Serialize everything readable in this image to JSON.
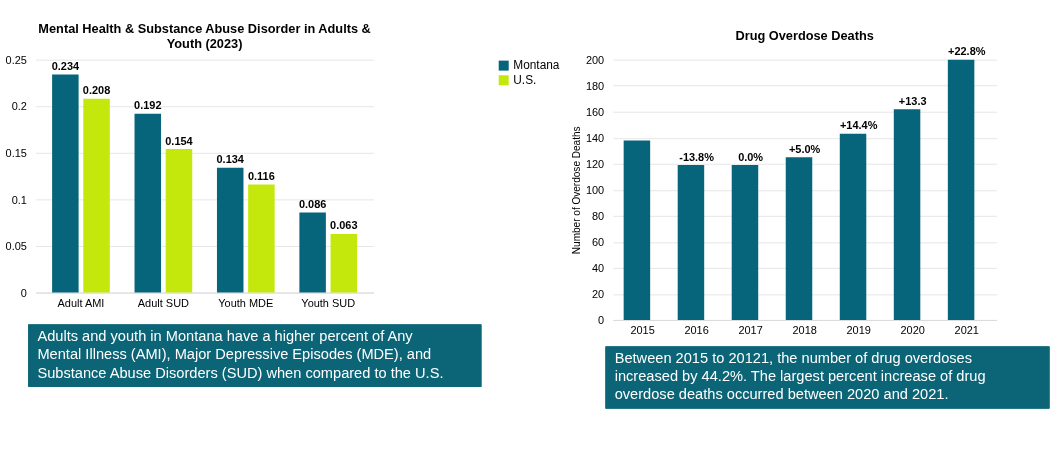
{
  "chart_data": [
    {
      "type": "bar",
      "title": "Mental Health & Substance Abuse Disorder in Adults & Youth (2023)",
      "categories": [
        "Adult AMI",
        "Adult SUD",
        "Youth MDE",
        "Youth SUD"
      ],
      "series": [
        {
          "name": "Montana",
          "color": "#06657a",
          "values": [
            0.234,
            0.192,
            0.134,
            0.086
          ]
        },
        {
          "name": "U.S.",
          "color": "#c5e80c",
          "values": [
            0.208,
            0.154,
            0.116,
            0.063
          ]
        }
      ],
      "ylim": [
        0,
        0.25
      ],
      "yticks": [
        0,
        0.05,
        0.1,
        0.15,
        0.2,
        0.25
      ],
      "grid": "y",
      "legend": "right",
      "data_labels": true,
      "annotations": [
        "Adults and youth in Montana have a higher percent of Any Mental Illness (AMI), Major Depressive Episodes (MDE), and Substance Abuse Disorders (SUD) when compared to the U.S."
      ]
    },
    {
      "type": "bar",
      "title": "Drug Overdose Deaths",
      "ylabel": "Number of Overdose Deaths",
      "categories": [
        "2015",
        "2016",
        "2017",
        "2018",
        "2019",
        "2020",
        "2021"
      ],
      "series": [
        {
          "color": "#06657a",
          "values": [
            138,
            119,
            119,
            125,
            143,
            162,
            200
          ]
        }
      ],
      "ylim": [
        0,
        200
      ],
      "yticks": [
        0,
        20,
        40,
        60,
        80,
        100,
        120,
        140,
        160,
        180,
        200
      ],
      "grid": "y",
      "annotations": [
        {
          "text": "-13.8%",
          "x": "2016",
          "y": 119
        },
        {
          "text": "0.0%",
          "x": "2017",
          "y": 119
        },
        {
          "text": "+5.0%",
          "x": "2018",
          "y": 125
        },
        {
          "text": "+14.4%",
          "x": "2019",
          "y": 143
        },
        {
          "text": "+13.3",
          "x": "2020",
          "y": 162
        },
        {
          "text": "+22.8%",
          "x": "2021",
          "y": 200
        },
        "Between 2015 to 20121, the number of drug overdoses increased by 44.2%. The largest percent increase of drug overdose deaths occurred between 2020 and 2021."
      ]
    }
  ]
}
